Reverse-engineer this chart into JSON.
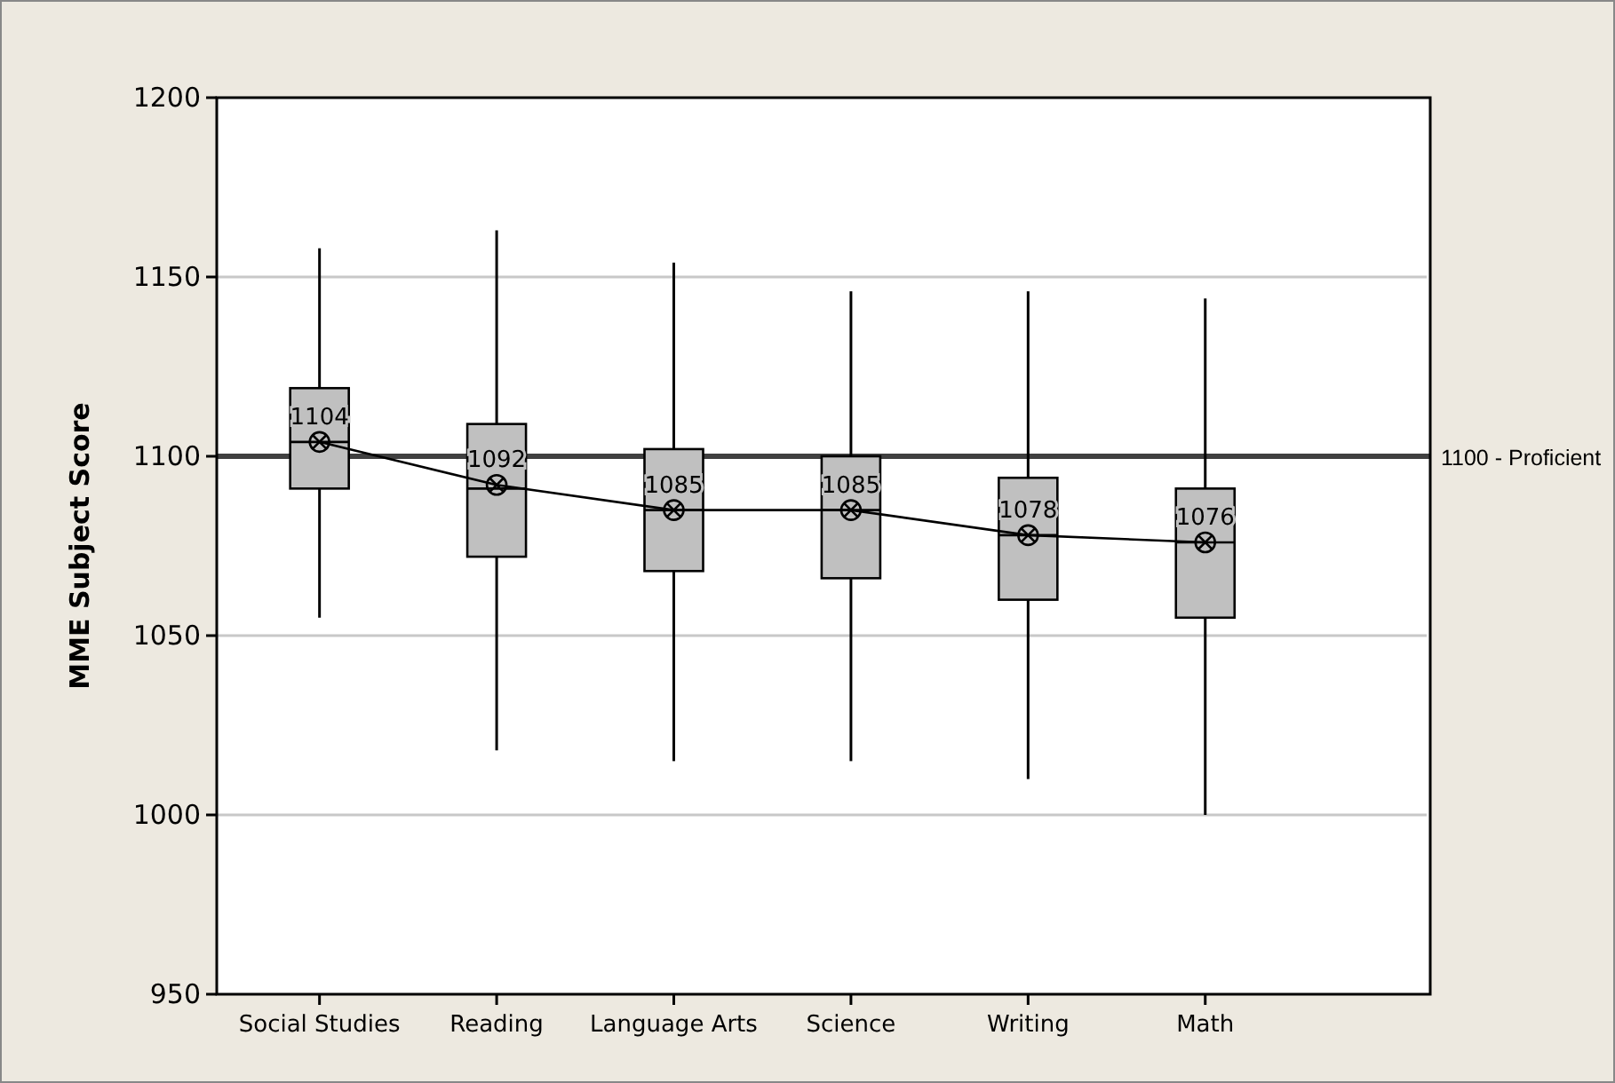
{
  "chart_data": {
    "type": "box",
    "ylabel": "MME Subject Score",
    "categories": [
      "Social Studies",
      "Reading",
      "Language Arts",
      "Science",
      "Writing",
      "Math"
    ],
    "boxes": [
      {
        "low": 1055,
        "q1": 1091,
        "median": 1104,
        "q3": 1119,
        "high": 1158
      },
      {
        "low": 1018,
        "q1": 1072,
        "median": 1091,
        "q3": 1109,
        "high": 1163
      },
      {
        "low": 1015,
        "q1": 1068,
        "median": 1085,
        "q3": 1102,
        "high": 1154
      },
      {
        "low": 1015,
        "q1": 1066,
        "median": 1085,
        "q3": 1100,
        "high": 1146
      },
      {
        "low": 1010,
        "q1": 1060,
        "median": 1078,
        "q3": 1094,
        "high": 1146
      },
      {
        "low": 1000,
        "q1": 1055,
        "median": 1076,
        "q3": 1091,
        "high": 1144
      }
    ],
    "color": "#c0c0c0",
    "series": [
      {
        "type": "line",
        "color": "#000000",
        "marker": "cross",
        "values": [
          1104,
          1092,
          1085,
          1085,
          1078,
          1076
        ]
      }
    ],
    "ylim": [
      950,
      1200
    ],
    "yticks": [
      950,
      1000,
      1050,
      1100,
      1150,
      1200
    ],
    "grid": "y",
    "data_labels": true,
    "ref_lines": [
      {
        "axis": "y",
        "value": 1100,
        "label": "1100 - Proficient",
        "color": "#404040"
      }
    ]
  }
}
